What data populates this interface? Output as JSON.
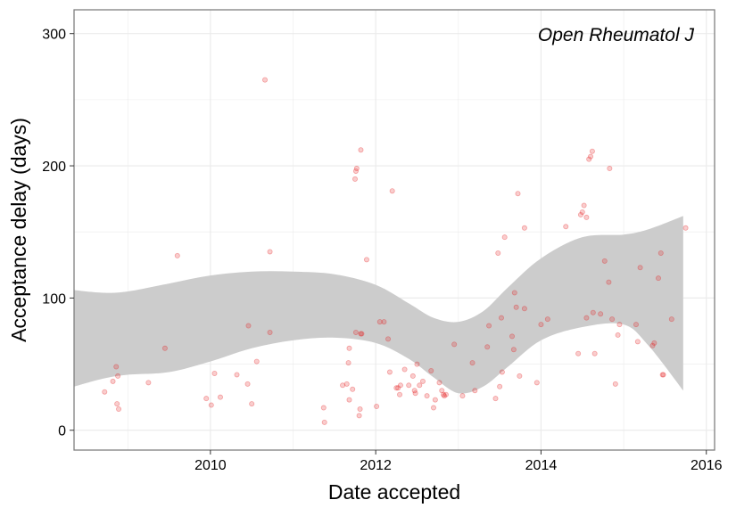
{
  "chart_data": {
    "type": "scatter",
    "annotation": "Open Rheumatol J",
    "xlabel": "Date accepted",
    "ylabel": "Acceptance delay (days)",
    "xlim": [
      2008.35,
      2016.1
    ],
    "ylim": [
      -15,
      318
    ],
    "x_ticks": [
      2010,
      2012,
      2014,
      2016
    ],
    "x_tick_labels": [
      "2010",
      "2012",
      "2014",
      "2016"
    ],
    "y_ticks": [
      0,
      100,
      200,
      300
    ],
    "y_tick_labels": [
      "0",
      "100",
      "200",
      "300"
    ],
    "grid": true,
    "colors": {
      "points": "#e41a1c",
      "ribbon": "#cccccc",
      "grid": "#ebebeb",
      "border": "#7f7f7f"
    },
    "smooth_band": {
      "x": [
        2008.35,
        2008.7,
        2009.0,
        2009.5,
        2010.0,
        2010.5,
        2011.0,
        2011.5,
        2012.0,
        2012.4,
        2012.7,
        2013.0,
        2013.3,
        2013.6,
        2014.0,
        2014.5,
        2015.0,
        2015.3,
        2015.72
      ],
      "upper": [
        106,
        104,
        105,
        111,
        117,
        120,
        120,
        118,
        110,
        96,
        85,
        82,
        90,
        108,
        130,
        146,
        148,
        152,
        162
      ],
      "lower": [
        33,
        39,
        42,
        44,
        52,
        62,
        68,
        70,
        66,
        54,
        40,
        28,
        33,
        48,
        68,
        78,
        80,
        64,
        30
      ]
    },
    "points": [
      {
        "x": 2008.72,
        "y": 29
      },
      {
        "x": 2008.82,
        "y": 37
      },
      {
        "x": 2008.86,
        "y": 48
      },
      {
        "x": 2008.88,
        "y": 41
      },
      {
        "x": 2008.87,
        "y": 20
      },
      {
        "x": 2008.89,
        "y": 16
      },
      {
        "x": 2009.25,
        "y": 36
      },
      {
        "x": 2009.45,
        "y": 62
      },
      {
        "x": 2009.6,
        "y": 132
      },
      {
        "x": 2009.95,
        "y": 24
      },
      {
        "x": 2010.01,
        "y": 19
      },
      {
        "x": 2010.05,
        "y": 43
      },
      {
        "x": 2010.12,
        "y": 25
      },
      {
        "x": 2010.32,
        "y": 42
      },
      {
        "x": 2010.46,
        "y": 79
      },
      {
        "x": 2010.45,
        "y": 35
      },
      {
        "x": 2010.5,
        "y": 20
      },
      {
        "x": 2010.56,
        "y": 52
      },
      {
        "x": 2010.66,
        "y": 265
      },
      {
        "x": 2010.72,
        "y": 135
      },
      {
        "x": 2010.72,
        "y": 74
      },
      {
        "x": 2011.37,
        "y": 17
      },
      {
        "x": 2011.38,
        "y": 6
      },
      {
        "x": 2011.6,
        "y": 34
      },
      {
        "x": 2011.65,
        "y": 35
      },
      {
        "x": 2011.67,
        "y": 51
      },
      {
        "x": 2011.68,
        "y": 62
      },
      {
        "x": 2011.68,
        "y": 23
      },
      {
        "x": 2011.72,
        "y": 31
      },
      {
        "x": 2011.75,
        "y": 190
      },
      {
        "x": 2011.76,
        "y": 196
      },
      {
        "x": 2011.77,
        "y": 198
      },
      {
        "x": 2011.76,
        "y": 74
      },
      {
        "x": 2011.8,
        "y": 11
      },
      {
        "x": 2011.81,
        "y": 16
      },
      {
        "x": 2011.82,
        "y": 73
      },
      {
        "x": 2011.83,
        "y": 73
      },
      {
        "x": 2011.82,
        "y": 212
      },
      {
        "x": 2011.89,
        "y": 129
      },
      {
        "x": 2012.01,
        "y": 18
      },
      {
        "x": 2012.05,
        "y": 82
      },
      {
        "x": 2012.1,
        "y": 82
      },
      {
        "x": 2012.15,
        "y": 69
      },
      {
        "x": 2012.17,
        "y": 44
      },
      {
        "x": 2012.2,
        "y": 181
      },
      {
        "x": 2012.25,
        "y": 32
      },
      {
        "x": 2012.27,
        "y": 32
      },
      {
        "x": 2012.29,
        "y": 27
      },
      {
        "x": 2012.3,
        "y": 34
      },
      {
        "x": 2012.35,
        "y": 46
      },
      {
        "x": 2012.4,
        "y": 34
      },
      {
        "x": 2012.45,
        "y": 41
      },
      {
        "x": 2012.47,
        "y": 30
      },
      {
        "x": 2012.48,
        "y": 28
      },
      {
        "x": 2012.5,
        "y": 50
      },
      {
        "x": 2012.53,
        "y": 34
      },
      {
        "x": 2012.57,
        "y": 37
      },
      {
        "x": 2012.62,
        "y": 26
      },
      {
        "x": 2012.67,
        "y": 45
      },
      {
        "x": 2012.7,
        "y": 17
      },
      {
        "x": 2012.72,
        "y": 23
      },
      {
        "x": 2012.77,
        "y": 36
      },
      {
        "x": 2012.8,
        "y": 30
      },
      {
        "x": 2012.82,
        "y": 27
      },
      {
        "x": 2012.83,
        "y": 26
      },
      {
        "x": 2012.85,
        "y": 27
      },
      {
        "x": 2012.95,
        "y": 65
      },
      {
        "x": 2013.05,
        "y": 26
      },
      {
        "x": 2013.17,
        "y": 51
      },
      {
        "x": 2013.2,
        "y": 30
      },
      {
        "x": 2013.35,
        "y": 63
      },
      {
        "x": 2013.37,
        "y": 79
      },
      {
        "x": 2013.45,
        "y": 24
      },
      {
        "x": 2013.48,
        "y": 134
      },
      {
        "x": 2013.5,
        "y": 33
      },
      {
        "x": 2013.52,
        "y": 85
      },
      {
        "x": 2013.53,
        "y": 44
      },
      {
        "x": 2013.56,
        "y": 146
      },
      {
        "x": 2013.65,
        "y": 71
      },
      {
        "x": 2013.67,
        "y": 61
      },
      {
        "x": 2013.68,
        "y": 104
      },
      {
        "x": 2013.7,
        "y": 93
      },
      {
        "x": 2013.72,
        "y": 179
      },
      {
        "x": 2013.74,
        "y": 41
      },
      {
        "x": 2013.8,
        "y": 92
      },
      {
        "x": 2013.8,
        "y": 153
      },
      {
        "x": 2013.95,
        "y": 36
      },
      {
        "x": 2014.0,
        "y": 80
      },
      {
        "x": 2014.08,
        "y": 84
      },
      {
        "x": 2014.3,
        "y": 154
      },
      {
        "x": 2014.45,
        "y": 58
      },
      {
        "x": 2014.48,
        "y": 163
      },
      {
        "x": 2014.5,
        "y": 165
      },
      {
        "x": 2014.52,
        "y": 170
      },
      {
        "x": 2014.55,
        "y": 161
      },
      {
        "x": 2014.55,
        "y": 85
      },
      {
        "x": 2014.58,
        "y": 205
      },
      {
        "x": 2014.6,
        "y": 207
      },
      {
        "x": 2014.62,
        "y": 211
      },
      {
        "x": 2014.63,
        "y": 89
      },
      {
        "x": 2014.65,
        "y": 58
      },
      {
        "x": 2014.72,
        "y": 88
      },
      {
        "x": 2014.77,
        "y": 128
      },
      {
        "x": 2014.82,
        "y": 112
      },
      {
        "x": 2014.83,
        "y": 198
      },
      {
        "x": 2014.86,
        "y": 84
      },
      {
        "x": 2014.9,
        "y": 35
      },
      {
        "x": 2014.93,
        "y": 72
      },
      {
        "x": 2014.95,
        "y": 80
      },
      {
        "x": 2015.15,
        "y": 80
      },
      {
        "x": 2015.17,
        "y": 67
      },
      {
        "x": 2015.2,
        "y": 123
      },
      {
        "x": 2015.35,
        "y": 64
      },
      {
        "x": 2015.37,
        "y": 66
      },
      {
        "x": 2015.42,
        "y": 115
      },
      {
        "x": 2015.45,
        "y": 134
      },
      {
        "x": 2015.47,
        "y": 42
      },
      {
        "x": 2015.48,
        "y": 42
      },
      {
        "x": 2015.58,
        "y": 84
      },
      {
        "x": 2015.75,
        "y": 153
      }
    ]
  }
}
